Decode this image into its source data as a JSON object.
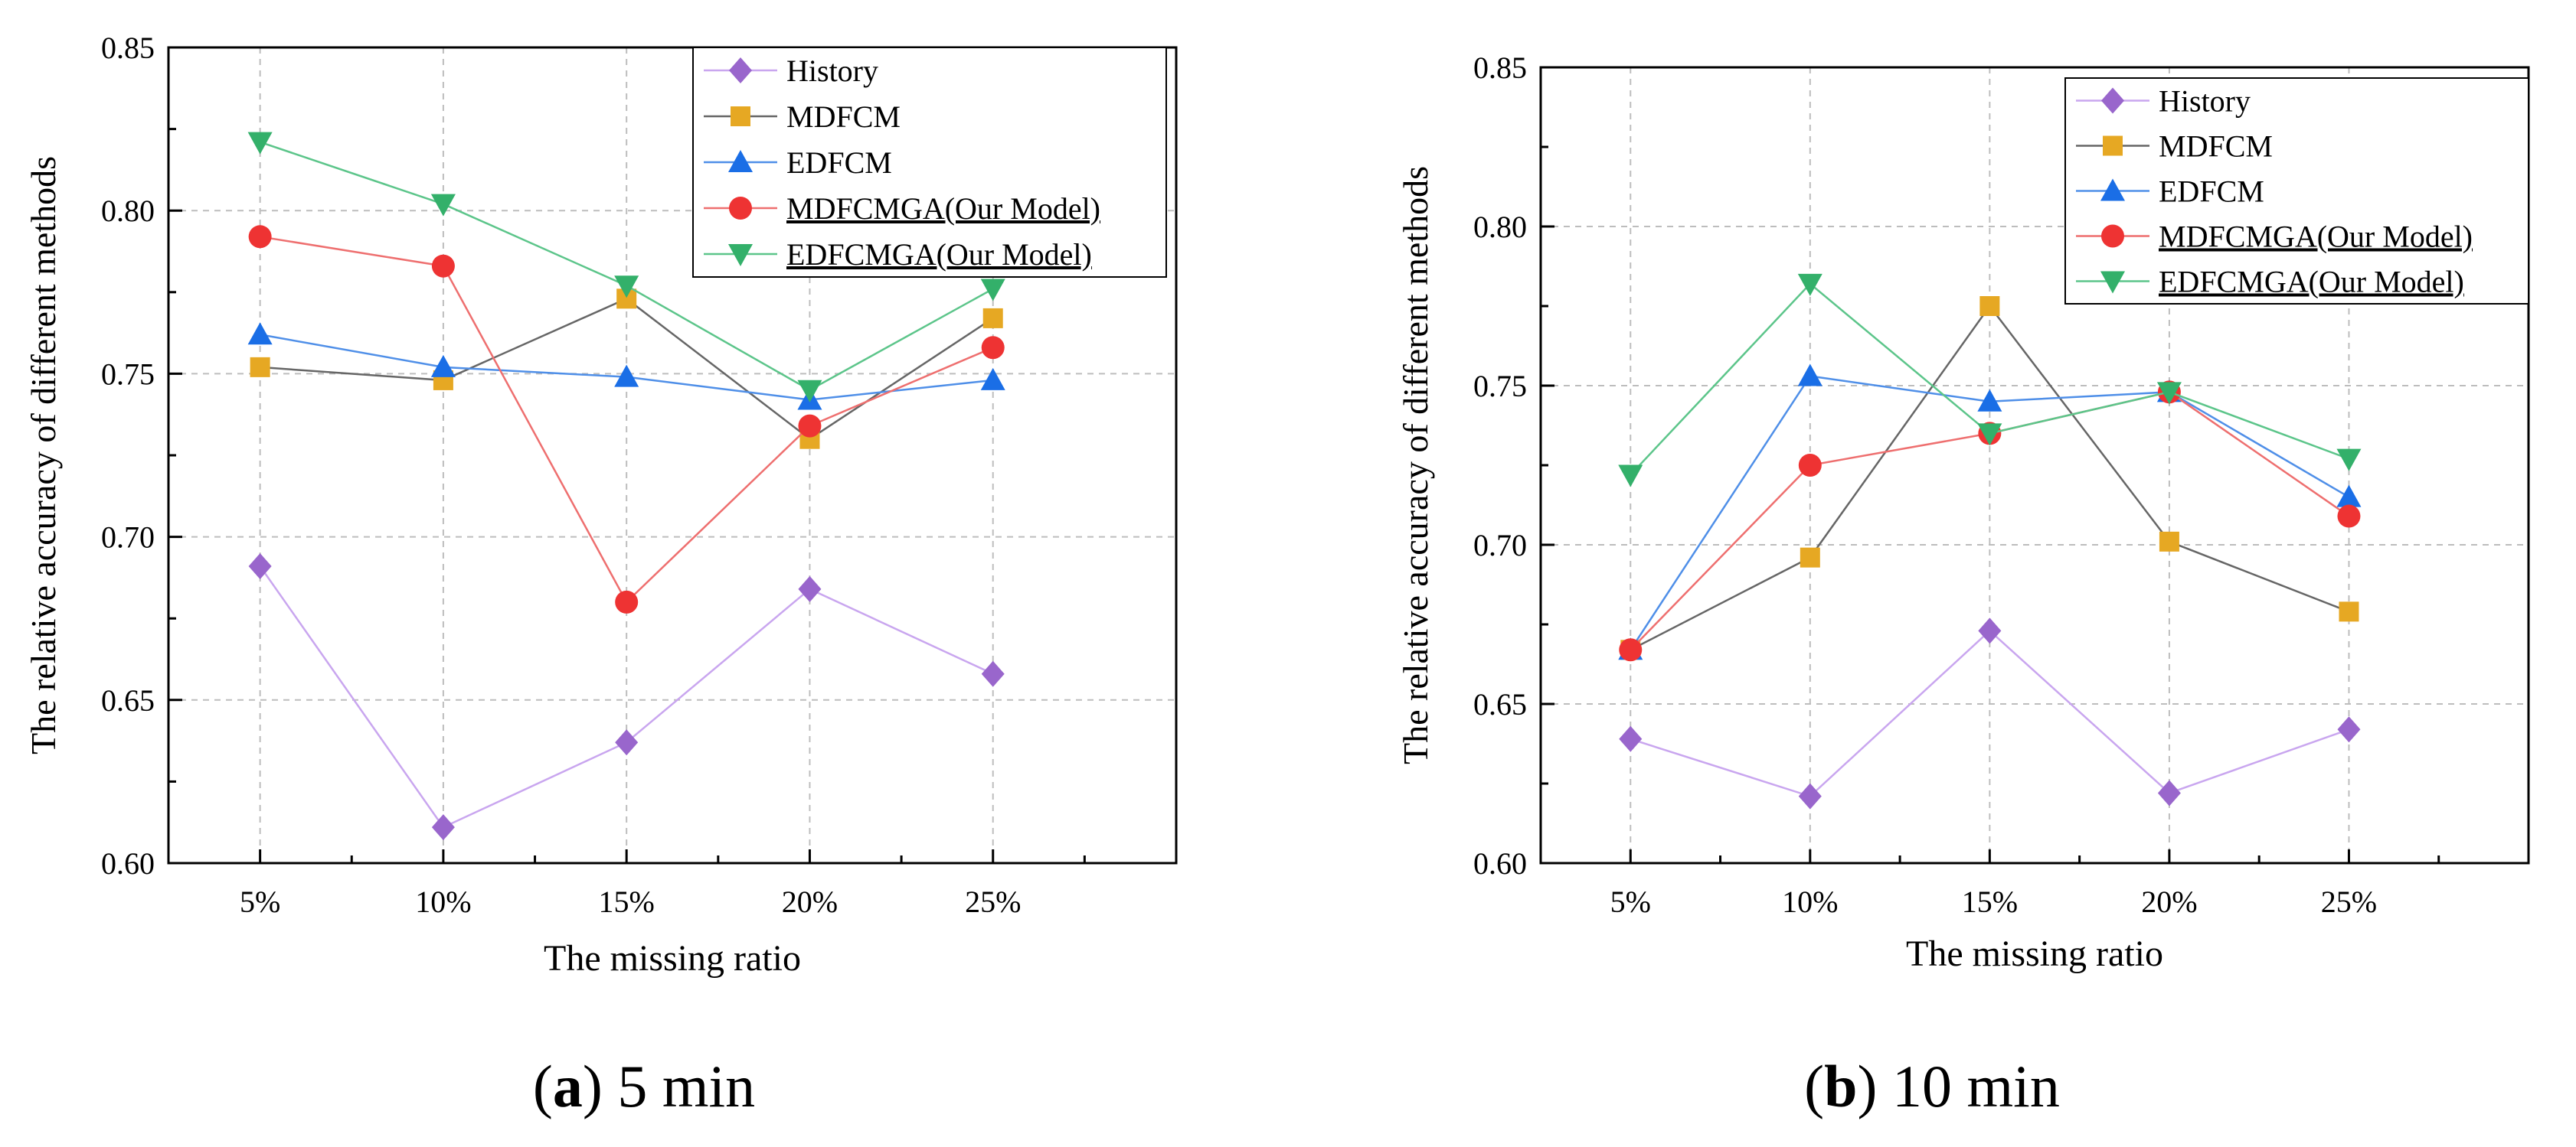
{
  "panels": [
    {
      "caption_letter": "a",
      "caption_text": " 5 min",
      "chart_data": {
        "type": "line",
        "title": "",
        "xlabel": "The missing ratio",
        "ylabel": "The relative accuracy of different methods",
        "categories": [
          "5%",
          "10%",
          "15%",
          "20%",
          "25%"
        ],
        "yticks": [
          "0.60",
          "0.65",
          "0.70",
          "0.75",
          "0.80",
          "0.85"
        ],
        "ylim": [
          0.6,
          0.85
        ],
        "grid": true,
        "legend_position": "top-right",
        "series": [
          {
            "name": "History",
            "color": "#9966cc",
            "marker": "diamond",
            "values": [
              0.691,
              0.611,
              0.637,
              0.684,
              0.658
            ]
          },
          {
            "name": "MDFCM",
            "color": "#e6a823",
            "marker": "square",
            "values": [
              0.752,
              0.748,
              0.773,
              0.73,
              0.767
            ]
          },
          {
            "name": "EDFCM",
            "color": "#1a6ee6",
            "marker": "triangle-up",
            "values": [
              0.762,
              0.752,
              0.749,
              0.742,
              0.748
            ]
          },
          {
            "name": "MDFCMGA(Our Model)",
            "color": "#ee3333",
            "marker": "circle",
            "values": [
              0.792,
              0.783,
              0.68,
              0.734,
              0.758
            ]
          },
          {
            "name": "EDFCMGA(Our Model)",
            "color": "#33b06a",
            "marker": "triangle-down",
            "values": [
              0.821,
              0.802,
              0.777,
              0.745,
              0.776
            ]
          }
        ],
        "line_colors": [
          "#c9a6ef",
          "#666666",
          "#4f8fe8",
          "#ee6f6f",
          "#5cc58a"
        ]
      }
    },
    {
      "caption_letter": "b",
      "caption_text": " 10 min",
      "chart_data": {
        "type": "line",
        "title": "",
        "xlabel": "The missing ratio",
        "ylabel": "The relative accuracy of different methods",
        "categories": [
          "5%",
          "10%",
          "15%",
          "20%",
          "25%"
        ],
        "yticks": [
          "0.60",
          "0.65",
          "0.70",
          "0.75",
          "0.80",
          "0.85"
        ],
        "ylim": [
          0.6,
          0.85
        ],
        "grid": true,
        "legend_position": "top-right",
        "series": [
          {
            "name": "History",
            "color": "#9966cc",
            "marker": "diamond",
            "values": [
              0.639,
              0.621,
              0.673,
              0.622,
              0.642
            ]
          },
          {
            "name": "MDFCM",
            "color": "#e6a823",
            "marker": "square",
            "values": [
              0.667,
              0.696,
              0.775,
              0.701,
              0.679
            ]
          },
          {
            "name": "EDFCM",
            "color": "#1a6ee6",
            "marker": "triangle-up",
            "values": [
              0.667,
              0.753,
              0.745,
              0.748,
              0.715
            ]
          },
          {
            "name": "MDFCMGA(Our Model)",
            "color": "#ee3333",
            "marker": "circle",
            "values": [
              0.667,
              0.725,
              0.735,
              0.748,
              0.709
            ]
          },
          {
            "name": "EDFCMGA(Our Model)",
            "color": "#33b06a",
            "marker": "triangle-down",
            "values": [
              0.722,
              0.782,
              0.735,
              0.748,
              0.727
            ]
          }
        ],
        "line_colors": [
          "#c9a6ef",
          "#666666",
          "#4f8fe8",
          "#ee6f6f",
          "#5cc58a"
        ]
      }
    }
  ]
}
